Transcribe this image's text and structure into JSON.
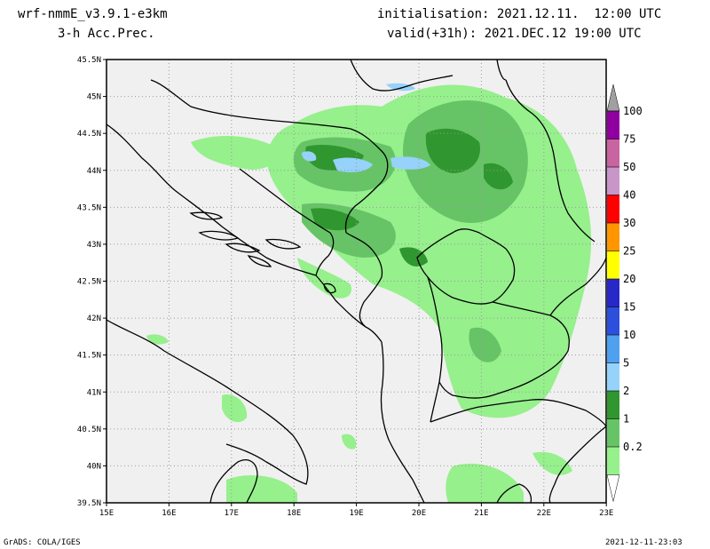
{
  "header": {
    "model": "wrf-nmmE_v3.9.1-e3km",
    "field": "3-h Acc.Prec.",
    "init": "initialisation: 2021.12.11.  12:00 UTC",
    "valid": "valid(+31h): 2021.DEC.12 19:00 UTC"
  },
  "footer": {
    "left": "GrADS: COLA/IGES",
    "right": "2021-12-11-23:03"
  },
  "axes": {
    "lat_labels": [
      "45.5N",
      "45N",
      "44.5N",
      "44N",
      "43.5N",
      "43N",
      "42.5N",
      "42N",
      "41.5N",
      "41N",
      "40.5N",
      "40N",
      "39.5N"
    ],
    "lon_labels": [
      "15E",
      "16E",
      "17E",
      "18E",
      "19E",
      "20E",
      "21E",
      "22E",
      "23E"
    ]
  },
  "colorbar": {
    "levels": [
      "100",
      "75",
      "50",
      "40",
      "30",
      "25",
      "20",
      "15",
      "10",
      "5",
      "2",
      "1",
      "0.2"
    ],
    "colors": [
      "#a0a0a0",
      "#9000a0",
      "#c864a0",
      "#c896c8",
      "#ff0000",
      "#ff9600",
      "#ffff00",
      "#2828c8",
      "#2d50dc",
      "#50a0f0",
      "#96d2fa",
      "#30962f",
      "#66c466",
      "#96f08c"
    ]
  },
  "map_colors": {
    "background": "#f0f0f0",
    "land_border": "#000000",
    "grid": "#9a9a9a",
    "precip_light": "#96f08c",
    "precip_mid": "#66c466",
    "precip_heavy": "#30962f",
    "precip_blue": "#96d2fa"
  }
}
